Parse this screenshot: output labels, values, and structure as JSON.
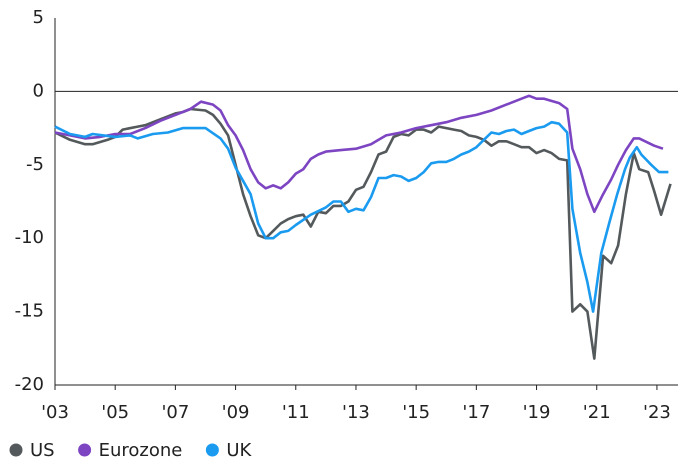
{
  "chart_data": {
    "type": "line",
    "xlim": [
      2003,
      2023.7
    ],
    "xticks": [
      {
        "value": 2003,
        "label": "'03"
      },
      {
        "value": 2005,
        "label": "'05"
      },
      {
        "value": 2007,
        "label": "'07"
      },
      {
        "value": 2009,
        "label": "'09"
      },
      {
        "value": 2011,
        "label": "'11"
      },
      {
        "value": 2013,
        "label": "'13"
      },
      {
        "value": 2015,
        "label": "'15"
      },
      {
        "value": 2017,
        "label": "'17"
      },
      {
        "value": 2019,
        "label": "'19"
      },
      {
        "value": 2021,
        "label": "'21"
      },
      {
        "value": 2023,
        "label": "'23"
      }
    ],
    "ylim": [
      -20,
      5
    ],
    "yticks": [
      5,
      0,
      -5,
      -10,
      -15,
      -20
    ],
    "zero_line": true,
    "series": [
      {
        "name": "US",
        "color": "#54595c",
        "x": [
          2003,
          2003.5,
          2004,
          2004.25,
          2004.75,
          2005,
          2005.25,
          2005.75,
          2006,
          2006.5,
          2007,
          2007.25,
          2007.5,
          2008,
          2008.25,
          2008.5,
          2008.75,
          2009,
          2009.25,
          2009.5,
          2009.75,
          2010,
          2010.25,
          2010.5,
          2010.75,
          2011,
          2011.25,
          2011.5,
          2011.75,
          2012,
          2012.25,
          2012.5,
          2012.75,
          2013,
          2013.25,
          2013.5,
          2013.75,
          2014,
          2014.25,
          2014.5,
          2014.75,
          2015,
          2015.25,
          2015.5,
          2015.75,
          2016,
          2016.25,
          2016.5,
          2016.75,
          2017,
          2017.25,
          2017.5,
          2017.75,
          2018,
          2018.25,
          2018.5,
          2018.75,
          2019,
          2019.25,
          2019.5,
          2019.75,
          2020.02,
          2020.19,
          2020.45,
          2020.69,
          2020.92,
          2021.21,
          2021.48,
          2021.71,
          2021.97,
          2022.23,
          2022.41,
          2022.71,
          2022.91,
          2023.14,
          2023.45
        ],
        "values": [
          -2.8,
          -3.3,
          -3.6,
          -3.6,
          -3.3,
          -3.1,
          -2.6,
          -2.4,
          -2.3,
          -1.9,
          -1.5,
          -1.4,
          -1.2,
          -1.3,
          -1.6,
          -2.2,
          -3.0,
          -5.0,
          -7.0,
          -8.5,
          -9.8,
          -10.0,
          -9.5,
          -9.0,
          -8.7,
          -8.5,
          -8.4,
          -9.2,
          -8.2,
          -8.3,
          -7.8,
          -7.8,
          -7.5,
          -6.7,
          -6.5,
          -5.5,
          -4.3,
          -4.1,
          -3.1,
          -2.9,
          -3.0,
          -2.6,
          -2.6,
          -2.8,
          -2.4,
          -2.5,
          -2.6,
          -2.7,
          -3.0,
          -3.1,
          -3.3,
          -3.7,
          -3.4,
          -3.4,
          -3.6,
          -3.8,
          -3.8,
          -4.2,
          -4.0,
          -4.2,
          -4.6,
          -4.7,
          -15.0,
          -14.5,
          -15.0,
          -18.2,
          -11.2,
          -11.7,
          -10.5,
          -7.0,
          -4.2,
          -5.3,
          -5.5,
          -6.8,
          -8.4,
          -6.3
        ]
      },
      {
        "name": "Eurozone",
        "color": "#7d45c2",
        "x": [
          2003,
          2003.5,
          2004,
          2004.5,
          2005,
          2005.5,
          2006,
          2006.5,
          2007,
          2007.5,
          2007.85,
          2008.25,
          2008.5,
          2008.75,
          2009,
          2009.25,
          2009.5,
          2009.75,
          2010,
          2010.25,
          2010.5,
          2010.75,
          2011,
          2011.25,
          2011.5,
          2011.75,
          2012,
          2012.5,
          2013,
          2013.5,
          2014,
          2014.5,
          2015,
          2015.5,
          2016,
          2016.5,
          2017,
          2017.5,
          2018,
          2018.5,
          2018.75,
          2019,
          2019.25,
          2019.75,
          2020.02,
          2020.19,
          2020.45,
          2020.69,
          2020.92,
          2021.21,
          2021.48,
          2021.71,
          2021.97,
          2022.23,
          2022.41,
          2022.71,
          2022.91,
          2023.2
        ],
        "values": [
          -2.8,
          -3.0,
          -3.2,
          -3.1,
          -2.9,
          -2.9,
          -2.5,
          -2.0,
          -1.6,
          -1.2,
          -0.7,
          -0.9,
          -1.3,
          -2.3,
          -3.0,
          -4.0,
          -5.3,
          -6.2,
          -6.6,
          -6.4,
          -6.6,
          -6.2,
          -5.6,
          -5.3,
          -4.6,
          -4.3,
          -4.1,
          -4.0,
          -3.9,
          -3.6,
          -3.0,
          -2.8,
          -2.5,
          -2.3,
          -2.1,
          -1.8,
          -1.6,
          -1.3,
          -0.9,
          -0.5,
          -0.3,
          -0.5,
          -0.5,
          -0.8,
          -1.2,
          -3.9,
          -5.3,
          -7.0,
          -8.2,
          -7.0,
          -6.0,
          -5.0,
          -4.0,
          -3.2,
          -3.2,
          -3.5,
          -3.7,
          -3.9
        ]
      },
      {
        "name": "UK",
        "color": "#1a9bf0",
        "x": [
          2003,
          2003.5,
          2004,
          2004.25,
          2005,
          2005.5,
          2005.75,
          2006.25,
          2006.75,
          2007.25,
          2008,
          2008.5,
          2008.75,
          2009,
          2009.5,
          2009.75,
          2010,
          2010.25,
          2010.5,
          2010.75,
          2011,
          2011.5,
          2012,
          2012.25,
          2012.5,
          2012.75,
          2013,
          2013.25,
          2013.5,
          2013.75,
          2014,
          2014.25,
          2014.5,
          2014.75,
          2015,
          2015.25,
          2015.5,
          2015.75,
          2016,
          2016.25,
          2016.5,
          2016.75,
          2017,
          2017.25,
          2017.5,
          2017.75,
          2018,
          2018.25,
          2018.5,
          2018.75,
          2019,
          2019.25,
          2019.5,
          2019.75,
          2020.02,
          2020.19,
          2020.45,
          2020.69,
          2020.88,
          2021.15,
          2021.41,
          2021.68,
          2021.94,
          2022.1,
          2022.33,
          2022.48,
          2022.81,
          2023.07,
          2023.38
        ],
        "values": [
          -2.4,
          -2.9,
          -3.1,
          -2.9,
          -3.1,
          -3.0,
          -3.2,
          -2.9,
          -2.8,
          -2.5,
          -2.5,
          -3.2,
          -3.9,
          -5.2,
          -7.0,
          -9.0,
          -10.0,
          -10.0,
          -9.6,
          -9.5,
          -9.1,
          -8.4,
          -7.9,
          -7.5,
          -7.5,
          -8.2,
          -8.0,
          -8.1,
          -7.2,
          -5.9,
          -5.9,
          -5.7,
          -5.8,
          -6.1,
          -5.9,
          -5.5,
          -4.9,
          -4.8,
          -4.8,
          -4.6,
          -4.3,
          -4.1,
          -3.8,
          -3.3,
          -2.8,
          -2.9,
          -2.7,
          -2.6,
          -2.9,
          -2.7,
          -2.5,
          -2.4,
          -2.1,
          -2.2,
          -2.8,
          -8.0,
          -11.0,
          -13.0,
          -15.0,
          -11.0,
          -9.0,
          -7.0,
          -5.3,
          -4.5,
          -3.8,
          -4.3,
          -5.0,
          -5.5,
          -5.5
        ]
      }
    ]
  }
}
